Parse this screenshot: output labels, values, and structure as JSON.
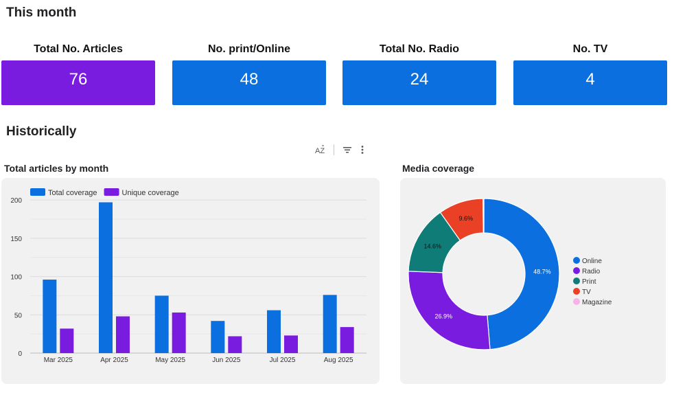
{
  "sections": {
    "this_month": "This month",
    "historically": "Historically"
  },
  "kpis": [
    {
      "label": "Total No. Articles",
      "value": "76",
      "color": "#7a1ce0"
    },
    {
      "label": "No. print/Online",
      "value": "48",
      "color": "#0b6fe0"
    },
    {
      "label": "Total No. Radio",
      "value": "24",
      "color": "#0b6fe0"
    },
    {
      "label": "No. TV",
      "value": "4",
      "color": "#0b6fe0"
    }
  ],
  "toolbar": {
    "sort_icon_text": "AZ",
    "icons": [
      "sort-az-icon",
      "filter-icon",
      "more-vert-icon"
    ]
  },
  "charts": {
    "bar_title": "Total articles by month",
    "donut_title": "Media coverage"
  },
  "chart_data": [
    {
      "type": "bar",
      "title": "Total articles by month",
      "categories": [
        "Mar 2025",
        "Apr 2025",
        "May 2025",
        "Jun 2025",
        "Jul 2025",
        "Aug 2025"
      ],
      "series": [
        {
          "name": "Total coverage",
          "color": "#0b6fe0",
          "values": [
            96,
            197,
            75,
            42,
            56,
            76
          ]
        },
        {
          "name": "Unique coverage",
          "color": "#7a1ce0",
          "values": [
            32,
            48,
            53,
            22,
            23,
            34
          ]
        }
      ],
      "yticks": [
        0,
        50,
        100,
        150,
        200
      ],
      "ylim": [
        0,
        210
      ],
      "legend": "top-left",
      "grid": true
    },
    {
      "type": "pie",
      "title": "Media coverage",
      "donut": true,
      "legend": "right",
      "slices": [
        {
          "label": "Online",
          "value": 48.7,
          "display": "48.7%",
          "color": "#0b6fe0"
        },
        {
          "label": "Radio",
          "value": 26.9,
          "display": "26.9%",
          "color": "#7a1ce0"
        },
        {
          "label": "Print",
          "value": 14.6,
          "display": "14.6%",
          "color": "#0f7c78"
        },
        {
          "label": "TV",
          "value": 9.6,
          "display": "9.6%",
          "color": "#ea4026"
        },
        {
          "label": "Magazine",
          "value": 0.2,
          "display": "",
          "color": "#f6b3e6"
        }
      ]
    }
  ]
}
